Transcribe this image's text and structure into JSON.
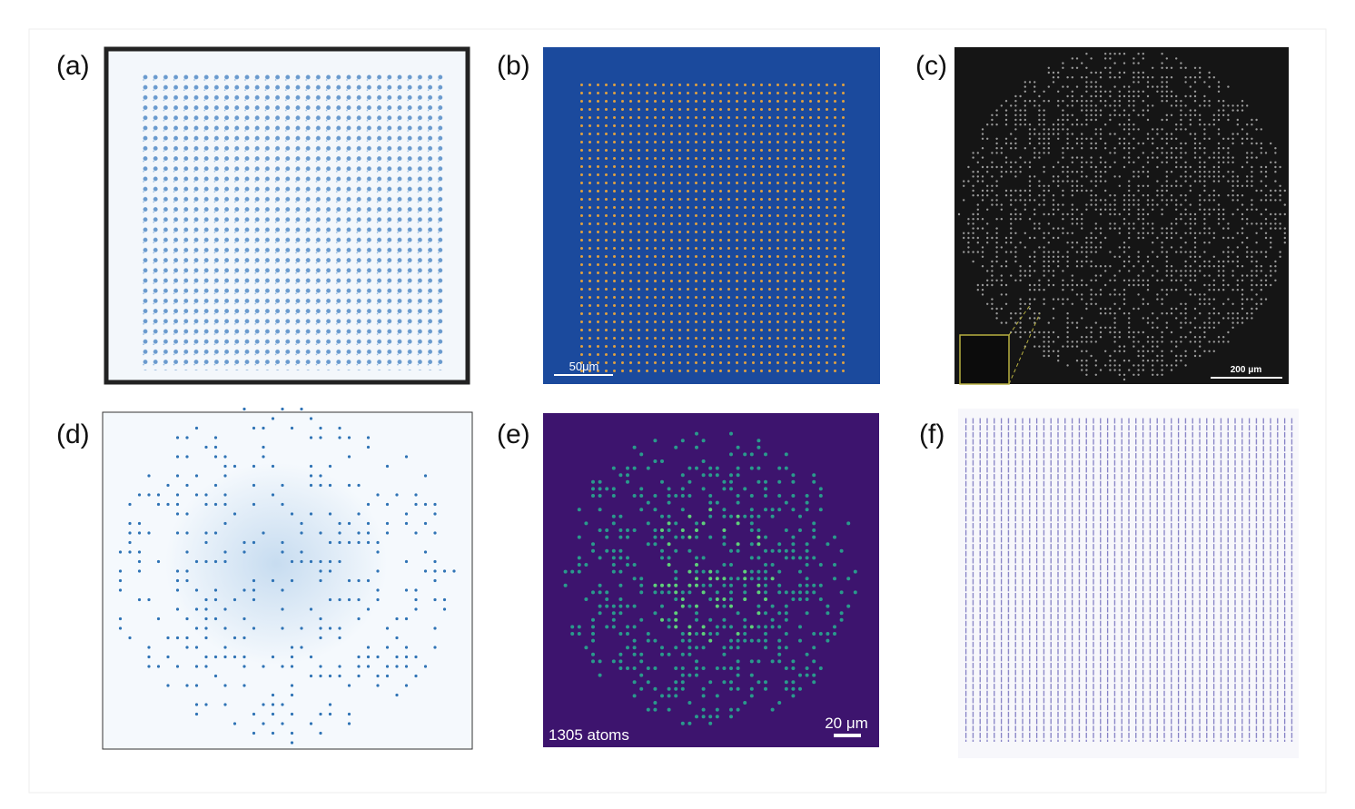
{
  "panels": [
    {
      "label": "(a)"
    },
    {
      "label": "(b)",
      "scale_bar": "50μm"
    },
    {
      "label": "(c)",
      "scale_bar": "200 μm"
    },
    {
      "label": "(d)"
    },
    {
      "label": "(e)",
      "annotation": "1305 atoms",
      "scale_bar": "20 μm"
    },
    {
      "label": "(f)"
    }
  ]
}
